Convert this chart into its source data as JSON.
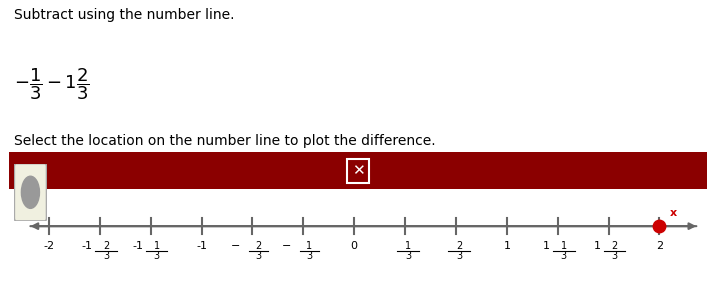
{
  "title_line1": "Subtract using the number line.",
  "instruction": "Select the location on the number line to plot the difference.",
  "answer_point": 2.0,
  "dot_color": "#cc0000",
  "border_color": "#8b0000",
  "header_bg": "#8b0000",
  "box_bg": "#ffffff",
  "number_line_color": "#666666",
  "answer_x_color": "#cc0000",
  "small_circle_color": "#999999",
  "small_circle_bg": "#f0f0e0",
  "background_color": "#ffffff"
}
